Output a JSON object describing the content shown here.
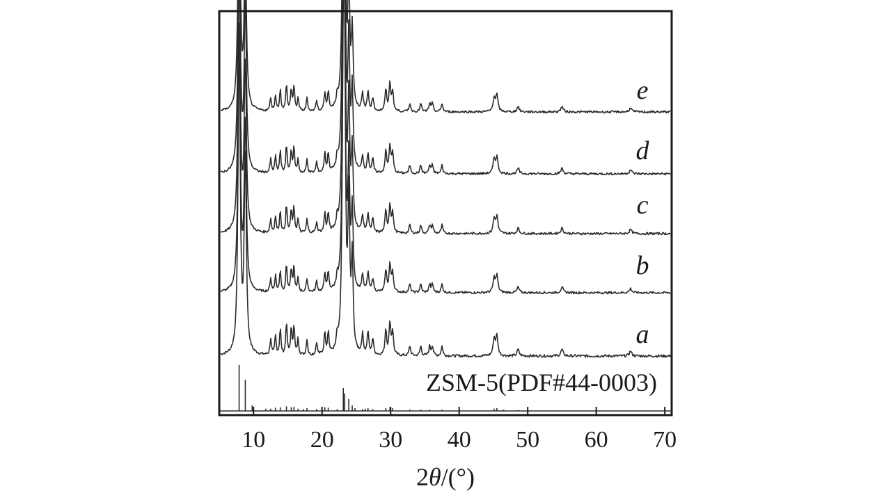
{
  "chart_data": {
    "type": "line",
    "xlabel_prefix": "2",
    "xlabel_symbol": "θ",
    "xlabel_unit": "/(°)",
    "ylabel": "",
    "xlim": [
      5,
      71
    ],
    "xticks": [
      10,
      20,
      30,
      40,
      50,
      60,
      70
    ],
    "grid": false,
    "y_axis_ticks": false,
    "peaks_2theta": [
      {
        "x": 7.9,
        "h": 1.0,
        "w": 0.18
      },
      {
        "x": 8.8,
        "h": 0.62,
        "w": 0.18
      },
      {
        "x": 12.5,
        "h": 0.05,
        "w": 0.12
      },
      {
        "x": 13.2,
        "h": 0.06,
        "w": 0.12
      },
      {
        "x": 13.9,
        "h": 0.08,
        "w": 0.12
      },
      {
        "x": 14.8,
        "h": 0.1,
        "w": 0.12
      },
      {
        "x": 15.5,
        "h": 0.08,
        "w": 0.12
      },
      {
        "x": 15.9,
        "h": 0.09,
        "w": 0.12
      },
      {
        "x": 16.5,
        "h": 0.05,
        "w": 0.12
      },
      {
        "x": 17.8,
        "h": 0.05,
        "w": 0.12
      },
      {
        "x": 19.2,
        "h": 0.04,
        "w": 0.12
      },
      {
        "x": 20.4,
        "h": 0.07,
        "w": 0.12
      },
      {
        "x": 20.9,
        "h": 0.07,
        "w": 0.12
      },
      {
        "x": 22.2,
        "h": 0.04,
        "w": 0.12
      },
      {
        "x": 23.1,
        "h": 0.85,
        "w": 0.18
      },
      {
        "x": 23.3,
        "h": 0.7,
        "w": 0.14
      },
      {
        "x": 23.9,
        "h": 0.45,
        "w": 0.16
      },
      {
        "x": 24.4,
        "h": 0.28,
        "w": 0.15
      },
      {
        "x": 25.9,
        "h": 0.06,
        "w": 0.14
      },
      {
        "x": 26.7,
        "h": 0.07,
        "w": 0.14
      },
      {
        "x": 27.4,
        "h": 0.05,
        "w": 0.14
      },
      {
        "x": 29.3,
        "h": 0.08,
        "w": 0.14
      },
      {
        "x": 29.9,
        "h": 0.1,
        "w": 0.15
      },
      {
        "x": 30.3,
        "h": 0.07,
        "w": 0.14
      },
      {
        "x": 32.8,
        "h": 0.03,
        "w": 0.14
      },
      {
        "x": 34.4,
        "h": 0.03,
        "w": 0.14
      },
      {
        "x": 35.7,
        "h": 0.03,
        "w": 0.14
      },
      {
        "x": 36.1,
        "h": 0.03,
        "w": 0.14
      },
      {
        "x": 37.5,
        "h": 0.03,
        "w": 0.14
      },
      {
        "x": 45.1,
        "h": 0.05,
        "w": 0.18
      },
      {
        "x": 45.5,
        "h": 0.06,
        "w": 0.18
      },
      {
        "x": 48.6,
        "h": 0.02,
        "w": 0.18
      },
      {
        "x": 55.0,
        "h": 0.02,
        "w": 0.2
      },
      {
        "x": 65.0,
        "h": 0.015,
        "w": 0.2
      }
    ],
    "series": [
      {
        "name": "a",
        "label": "a"
      },
      {
        "name": "b",
        "label": "b"
      },
      {
        "name": "c",
        "label": "c"
      },
      {
        "name": "d",
        "label": "d"
      },
      {
        "name": "e",
        "label": "e"
      }
    ],
    "reference": {
      "label": "ZSM-5(PDF#44-0003)",
      "sticks": [
        {
          "x": 7.9,
          "h": 1.0
        },
        {
          "x": 8.8,
          "h": 0.68
        },
        {
          "x": 9.8,
          "h": 0.12
        },
        {
          "x": 11.8,
          "h": 0.05
        },
        {
          "x": 12.5,
          "h": 0.05
        },
        {
          "x": 13.2,
          "h": 0.07
        },
        {
          "x": 13.9,
          "h": 0.08
        },
        {
          "x": 14.8,
          "h": 0.1
        },
        {
          "x": 15.5,
          "h": 0.08
        },
        {
          "x": 15.9,
          "h": 0.09
        },
        {
          "x": 16.5,
          "h": 0.05
        },
        {
          "x": 17.3,
          "h": 0.04
        },
        {
          "x": 17.8,
          "h": 0.06
        },
        {
          "x": 19.2,
          "h": 0.04
        },
        {
          "x": 20.4,
          "h": 0.08
        },
        {
          "x": 20.9,
          "h": 0.07
        },
        {
          "x": 22.2,
          "h": 0.04
        },
        {
          "x": 23.1,
          "h": 0.5
        },
        {
          "x": 23.3,
          "h": 0.38
        },
        {
          "x": 23.9,
          "h": 0.26
        },
        {
          "x": 24.4,
          "h": 0.12
        },
        {
          "x": 24.8,
          "h": 0.06
        },
        {
          "x": 25.9,
          "h": 0.04
        },
        {
          "x": 26.3,
          "h": 0.05
        },
        {
          "x": 26.7,
          "h": 0.06
        },
        {
          "x": 27.4,
          "h": 0.04
        },
        {
          "x": 29.3,
          "h": 0.06
        },
        {
          "x": 29.9,
          "h": 0.08
        },
        {
          "x": 30.3,
          "h": 0.06
        },
        {
          "x": 32.8,
          "h": 0.03
        },
        {
          "x": 34.4,
          "h": 0.03
        },
        {
          "x": 35.7,
          "h": 0.03
        },
        {
          "x": 37.5,
          "h": 0.03
        },
        {
          "x": 45.1,
          "h": 0.05
        },
        {
          "x": 45.5,
          "h": 0.06
        },
        {
          "x": 46.5,
          "h": 0.03
        },
        {
          "x": 48.6,
          "h": 0.02
        }
      ]
    }
  }
}
